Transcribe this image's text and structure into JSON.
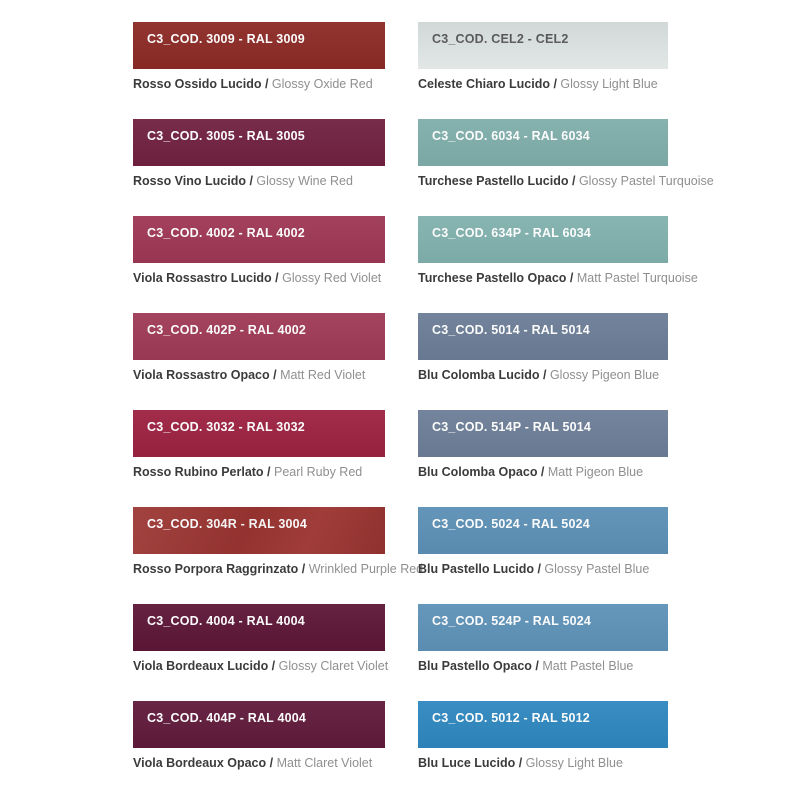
{
  "page": {
    "background": "#ffffff",
    "caption_bold_color": "#3b3b3b",
    "caption_gray_color": "#8f8f8f"
  },
  "columns": [
    {
      "id": "left",
      "items": [
        {
          "code": "C3_COD. 3009 - RAL 3009",
          "color": "#8c2a25",
          "label_color": "#ffffff",
          "name_it": "Rosso Ossido Lucido /",
          "name_en": "Glossy Oxide Red"
        },
        {
          "code": "C3_COD. 3005 - RAL 3005",
          "color": "#702140",
          "label_color": "#ffffff",
          "name_it": "Rosso Vino Lucido /",
          "name_en": "Glossy Wine Red"
        },
        {
          "code": "C3_COD. 4002 - RAL 4002",
          "color": "#9e3755",
          "label_color": "#ffffff",
          "name_it": "Viola Rossastro Lucido /",
          "name_en": "Glossy Red Violet"
        },
        {
          "code": "C3_COD. 402P - RAL 4002",
          "color": "#9f3a56",
          "label_color": "#ffffff",
          "name_it": "Viola Rossastro Opaco /",
          "name_en": "Matt Red Violet"
        },
        {
          "code": "C3_COD. 3032 - RAL 3032",
          "color": "#9c2241",
          "label_color": "#ffffff",
          "name_it": "Rosso Rubino Perlato /",
          "name_en": "Pearl Ruby Red"
        },
        {
          "code": "C3_COD. 304R - RAL 3004",
          "color": "#9c3532",
          "label_color": "#ffffff",
          "name_it": "Rosso Porpora Raggrinzato /",
          "name_en": "Wrinkled Purple Red"
        },
        {
          "code": "C3_COD. 4004 - RAL 4004",
          "color": "#5d1637",
          "label_color": "#ffffff",
          "name_it": "Viola Bordeaux Lucido /",
          "name_en": "Glossy Claret Violet"
        },
        {
          "code": "C3_COD. 404P - RAL 4004",
          "color": "#601a3b",
          "label_color": "#ffffff",
          "name_it": "Viola Bordeaux Opaco /",
          "name_en": "Matt Claret Violet"
        }
      ]
    },
    {
      "id": "right",
      "items": [
        {
          "code": "C3_COD. CEL2 - CEL2",
          "color": "#d8dfde",
          "label_color": "#4c4c4c",
          "name_it": "Celeste Chiaro Lucido /",
          "name_en": "Glossy Light Blue"
        },
        {
          "code": "C3_COD. 6034 - RAL 6034",
          "color": "#7faeaa",
          "label_color": "#ffffff",
          "name_it": "Turchese Pastello Lucido /",
          "name_en": "Glossy Pastel Turquoise"
        },
        {
          "code": "C3_COD. 634P - RAL 6034",
          "color": "#81b1ad",
          "label_color": "#ffffff",
          "name_it": "Turchese Pastello Opaco /",
          "name_en": "Matt Pastel Turquoise"
        },
        {
          "code": "C3_COD. 5014 - RAL 5014",
          "color": "#6b7d96",
          "label_color": "#ffffff",
          "name_it": "Blu Colomba Lucido /",
          "name_en": "Glossy Pigeon Blue"
        },
        {
          "code": "C3_COD. 514P - RAL 5014",
          "color": "#6c7e97",
          "label_color": "#ffffff",
          "name_it": "Blu Colomba Opaco /",
          "name_en": "Matt Pigeon Blue"
        },
        {
          "code": "C3_COD. 5024 - RAL 5024",
          "color": "#5c90b6",
          "label_color": "#ffffff",
          "name_it": "Blu Pastello Lucido /",
          "name_en": "Glossy Pastel Blue"
        },
        {
          "code": "C3_COD. 524P - RAL 5024",
          "color": "#5e92b8",
          "label_color": "#ffffff",
          "name_it": "Blu Pastello Opaco /",
          "name_en": "Matt Pastel Blue"
        },
        {
          "code": "C3_COD. 5012 - RAL 5012",
          "color": "#2e87bf",
          "label_color": "#ffffff",
          "name_it": "Blu Luce Lucido /",
          "name_en": "Glossy Light Blue"
        }
      ]
    }
  ]
}
